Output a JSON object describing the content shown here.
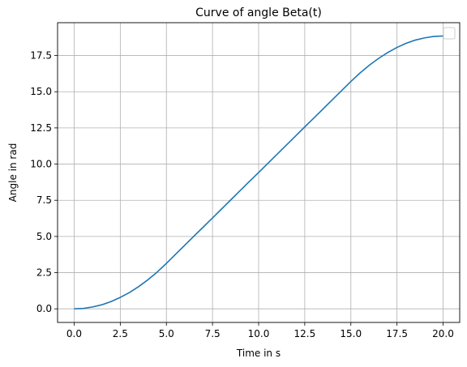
{
  "chart_data": {
    "type": "line",
    "title": "Curve of angle Beta(t)",
    "xlabel": "Time in s",
    "ylabel": "Angle in rad",
    "xlim": [
      -0.9,
      20.9
    ],
    "ylim": [
      -0.94,
      19.77
    ],
    "xticks": [
      0.0,
      2.5,
      5.0,
      7.5,
      10.0,
      12.5,
      15.0,
      17.5,
      20.0
    ],
    "xtick_labels": [
      "0.0",
      "2.5",
      "5.0",
      "7.5",
      "10.0",
      "12.5",
      "15.0",
      "17.5",
      "20.0"
    ],
    "yticks": [
      0.0,
      2.5,
      5.0,
      7.5,
      10.0,
      12.5,
      15.0,
      17.5
    ],
    "ytick_labels": [
      "0.0",
      "2.5",
      "5.0",
      "7.5",
      "10.0",
      "12.5",
      "15.0",
      "17.5"
    ],
    "grid": true,
    "legend": {
      "placement": "top-right",
      "entries": []
    },
    "series": [
      {
        "color": "#1f77b4",
        "x": [
          0,
          0.5,
          1,
          1.5,
          2,
          2.5,
          3,
          3.5,
          4,
          4.5,
          5,
          5.5,
          6,
          6.5,
          7,
          7.5,
          8,
          8.5,
          9,
          9.5,
          10,
          10.5,
          11,
          11.5,
          12,
          12.5,
          13,
          13.5,
          14,
          14.5,
          15,
          15.5,
          16,
          16.5,
          17,
          17.5,
          18,
          18.5,
          19,
          19.5,
          20
        ],
        "y": [
          0.0,
          0.03,
          0.13,
          0.28,
          0.5,
          0.79,
          1.13,
          1.54,
          2.01,
          2.54,
          3.14,
          3.77,
          4.4,
          5.03,
          5.65,
          6.28,
          6.91,
          7.54,
          8.17,
          8.8,
          9.42,
          10.05,
          10.68,
          11.31,
          11.94,
          12.57,
          13.19,
          13.82,
          14.45,
          15.08,
          15.71,
          16.3,
          16.83,
          17.3,
          17.71,
          18.06,
          18.35,
          18.57,
          18.72,
          18.82,
          18.85
        ]
      }
    ]
  }
}
